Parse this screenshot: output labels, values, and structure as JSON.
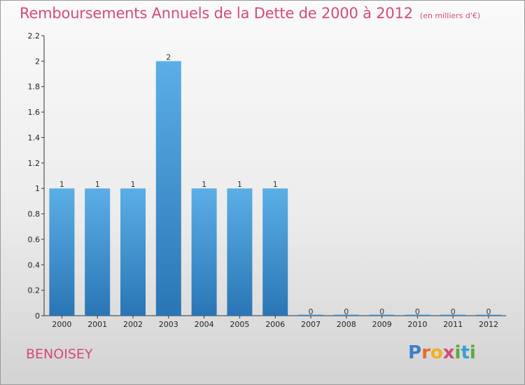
{
  "title": "Remboursements Annuels de la Dette de 2000 à 2012",
  "subtitle": "(en milliers d'€)",
  "commune": "BENOISEY",
  "logo": {
    "text": "Proxiti",
    "letters": [
      {
        "ch": "P",
        "color": "#3a7fc9"
      },
      {
        "ch": "r",
        "color": "#e86a2a"
      },
      {
        "ch": "o",
        "color": "#f2b01e"
      },
      {
        "ch": "x",
        "color": "#d64a7a"
      },
      {
        "ch": "i",
        "color": "#5aaa3c"
      },
      {
        "ch": "t",
        "color": "#3a9fd6"
      },
      {
        "ch": "i",
        "color": "#5aaa3c"
      }
    ]
  },
  "chart_data": {
    "type": "bar",
    "categories": [
      "2000",
      "2001",
      "2002",
      "2003",
      "2004",
      "2005",
      "2006",
      "2007",
      "2008",
      "2009",
      "2010",
      "2011",
      "2012"
    ],
    "values": [
      1,
      1,
      1,
      2,
      1,
      1,
      1,
      0,
      0,
      0,
      0,
      0,
      0
    ],
    "data_labels": [
      "1",
      "1",
      "1",
      "2",
      "1",
      "1",
      "1",
      "0",
      "0",
      "0",
      "0",
      "0",
      "0"
    ],
    "ylim": [
      0,
      2.2
    ],
    "yticks": [
      0,
      0.2,
      0.4,
      0.6,
      0.8,
      1,
      1.2,
      1.4,
      1.6,
      1.8,
      2,
      2.2
    ],
    "ytick_labels": [
      "0",
      "0.2",
      "0.4",
      "0.6",
      "0.8",
      "1",
      "1.2",
      "1.4",
      "1.6",
      "1.8",
      "2",
      "2.2"
    ],
    "xlabel": "",
    "ylabel": "",
    "grid": false,
    "bar_color_top": "#5baee6",
    "bar_color_bottom": "#2a76b5"
  }
}
